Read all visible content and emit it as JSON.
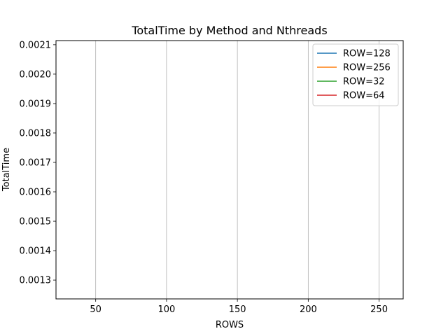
{
  "chart_data": {
    "type": "line",
    "title": "TotalTime by Method and Nthreads",
    "xlabel": "ROWS",
    "ylabel": "TotalTime",
    "xlim": [
      22,
      267
    ],
    "ylim": [
      0.001236,
      0.002114
    ],
    "xticks": [
      50,
      100,
      150,
      200,
      250
    ],
    "xtick_labels": [
      "50",
      "100",
      "150",
      "200",
      "250"
    ],
    "yticks": [
      0.0013,
      0.0014,
      0.0015,
      0.0016,
      0.0017,
      0.0018,
      0.0019,
      0.002,
      0.0021
    ],
    "ytick_labels": [
      "0.0013",
      "0.0014",
      "0.0015",
      "0.0016",
      "0.0017",
      "0.0018",
      "0.0019",
      "0.0020",
      "0.0021"
    ],
    "grid": "x-only",
    "legend_position": "top-right",
    "series": [
      {
        "name": "ROW=128",
        "color": "#1f77b4",
        "x": [],
        "y": []
      },
      {
        "name": "ROW=256",
        "color": "#ff7f0e",
        "x": [],
        "y": []
      },
      {
        "name": "ROW=32",
        "color": "#2ca02c",
        "x": [],
        "y": []
      },
      {
        "name": "ROW=64",
        "color": "#d62728",
        "x": [],
        "y": []
      }
    ]
  }
}
